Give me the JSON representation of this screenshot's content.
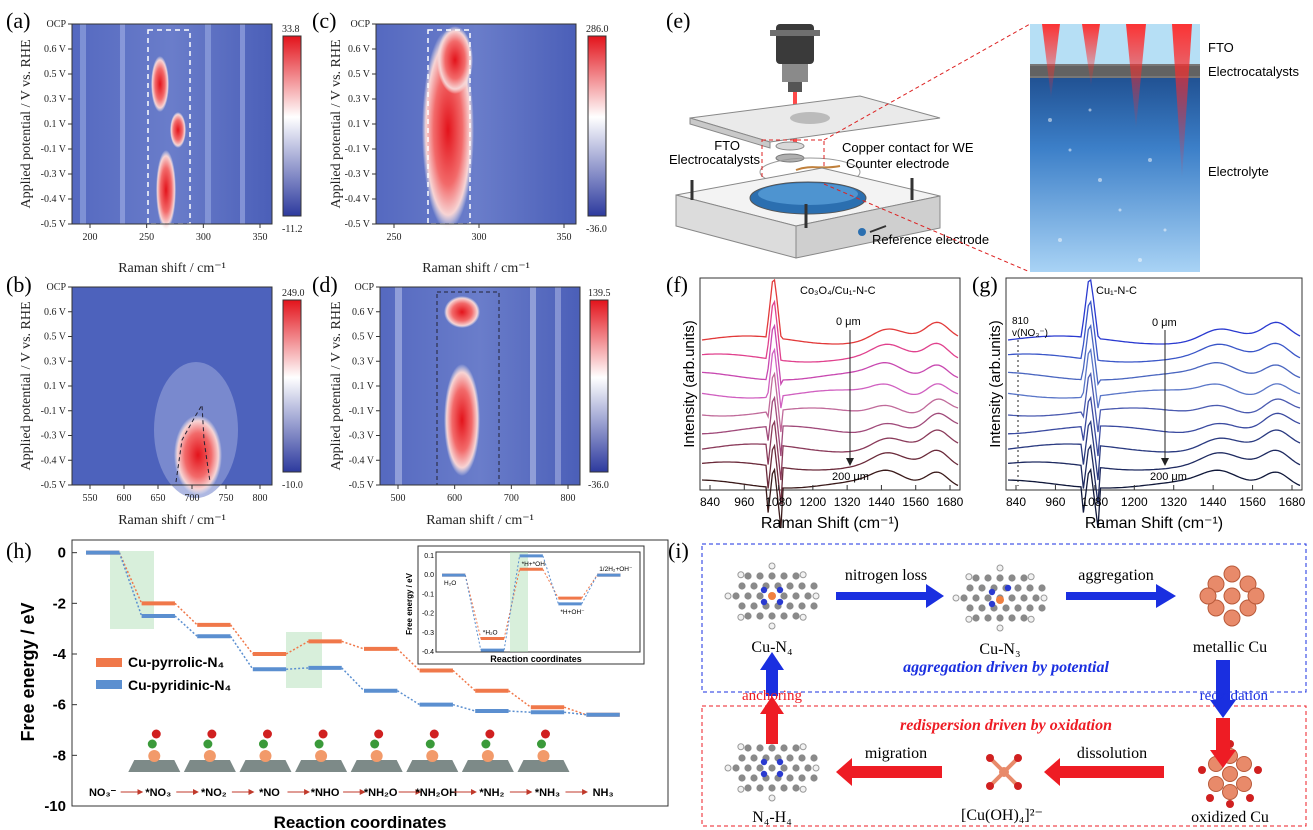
{
  "panels": {
    "a": {
      "label": "(a)",
      "ylabel": "Applied potential / V vs. RHE",
      "xlabel": "Raman shift / cm⁻¹",
      "yticks": [
        "OCP",
        "0.6 V",
        "0.5 V",
        "0.3 V",
        "0.1 V",
        "-0.1 V",
        "-0.3 V",
        "-0.4 V",
        "-0.5 V"
      ],
      "xticks": [
        "200",
        "250",
        "300",
        "350"
      ],
      "cbar_max": "33.8",
      "cbar_min": "-11.2"
    },
    "b": {
      "label": "(b)",
      "ylabel": "Applied potential / V vs. RHE",
      "xlabel": "Raman shift / cm⁻¹",
      "yticks": [
        "OCP",
        "0.6 V",
        "0.5 V",
        "0.3 V",
        "0.1 V",
        "-0.1 V",
        "-0.3 V",
        "-0.4 V",
        "-0.5 V"
      ],
      "xticks": [
        "550",
        "600",
        "650",
        "700",
        "750",
        "800"
      ],
      "cbar_max": "249.0",
      "cbar_min": "-10.0"
    },
    "c": {
      "label": "(c)",
      "ylabel": "Applied potential / V vs. RHE",
      "xlabel": "Raman shift / cm⁻¹",
      "yticks": [
        "OCP",
        "0.6 V",
        "0.5 V",
        "0.3 V",
        "0.1 V",
        "-0.1 V",
        "-0.3 V",
        "-0.4 V",
        "-0.5 V"
      ],
      "xticks": [
        "250",
        "300",
        "350"
      ],
      "cbar_max": "286.0",
      "cbar_min": "-36.0"
    },
    "d": {
      "label": "(d)",
      "ylabel": "Applied potential / V vs. RHE",
      "xlabel": "Raman shift / cm⁻¹",
      "yticks": [
        "OCP",
        "0.6 V",
        "0.5 V",
        "0.3 V",
        "0.1 V",
        "-0.1 V",
        "-0.3 V",
        "-0.4 V",
        "-0.5 V"
      ],
      "xticks": [
        "500",
        "600",
        "700",
        "800"
      ],
      "cbar_max": "139.5",
      "cbar_min": "-36.0"
    },
    "e": {
      "label": "(e)",
      "labels": {
        "fto_left": "FTO",
        "electrocatalysts_left": "Electrocatalysts",
        "copper": "Copper contact for WE",
        "counter": "Counter electrode",
        "reference": "Reference electrode",
        "fto_right": "FTO",
        "electrocatalysts_right": "Electrocatalysts",
        "electrolyte": "Electrolyte"
      }
    },
    "f": {
      "label": "(f)",
      "title": "Co₃O₄/Cu₁-N-C",
      "top": "0 μm",
      "bottom": "200 μm",
      "ylabel": "Intensity (arb.units)",
      "xlabel": "Raman Shift (cm⁻¹)",
      "xticks": [
        "840",
        "960",
        "1080",
        "1200",
        "1320",
        "1440",
        "1560",
        "1680"
      ]
    },
    "g": {
      "label": "(g)",
      "title": "Cu₁-N-C",
      "top": "0 μm",
      "bottom": "200 μm",
      "peak_note_1": "810",
      "peak_note_2": "v(NO₃⁻)",
      "ylabel": "Intensity (arb.units)",
      "xlabel": "Raman Shift (cm⁻¹)",
      "xticks": [
        "840",
        "960",
        "1080",
        "1200",
        "1320",
        "1440",
        "1560",
        "1680"
      ]
    },
    "h": {
      "label": "(h)",
      "ylabel": "Free energy / eV",
      "xlabel": "Reaction coordinates",
      "yticks": [
        "0",
        "-2",
        "-4",
        "-6",
        "-8",
        "-10"
      ],
      "legend": [
        "Cu-pyrrolic-N₄",
        "Cu-pyridinic-N₄"
      ],
      "steps": [
        "NO₃⁻",
        "*NO₃",
        "*NO₂",
        "*NO",
        "*NHO",
        "*NH₂O",
        "*NH₂OH",
        "*NH₂",
        "*NH₃",
        "NH₃"
      ],
      "inset": {
        "ylabel": "Free energy / eV",
        "xlabel": "Reaction coordinates",
        "yticks": [
          "0.1",
          "0.0",
          "-0.1",
          "-0.2",
          "-0.3",
          "-0.4"
        ],
        "states": [
          "H₂O",
          "*H₂O",
          "*H+*OH",
          "*H+OH⁻",
          "1/2H₂+OH⁻"
        ]
      }
    },
    "i": {
      "label": "(i)",
      "cu_n4": "Cu-N₄",
      "cu_n3": "Cu-N₃",
      "metallic": "metallic Cu",
      "n4h4": "N₄-H₄",
      "cuoh": "[Cu(OH)₄]²⁻",
      "oxidized": "oxidized Cu",
      "nitrogen_loss": "nitrogen loss",
      "aggregation": "aggregation",
      "reoxidation": "reoxidation",
      "anchoring": "anchoring",
      "dissolution": "dissolution",
      "migration": "migration",
      "top_caption": "aggregation driven by potential",
      "bottom_caption": "redispersion driven by oxidation"
    }
  },
  "colors": {
    "pyrrolic": "#f0784a",
    "pyridinic": "#5b8fd0",
    "arrow_blue": "#1a2fe0",
    "arrow_red": "#ee1c24",
    "heat_low": "#2d3a9e",
    "heat_high": "#e3131b"
  },
  "chart_data": [
    {
      "type": "line",
      "title": "",
      "xlabel": "Reaction coordinates",
      "ylabel": "Free energy / eV",
      "categories": [
        "NO₃⁻",
        "*NO₃",
        "*NO₂",
        "*NO",
        "*NHO",
        "*NH₂O",
        "*NH₂OH",
        "*NH₂",
        "*NH₃",
        "NH₃"
      ],
      "ylim": [
        -10,
        0.5
      ],
      "series": [
        {
          "name": "Cu-pyrrolic-N₄",
          "values": [
            0,
            -2.0,
            -2.85,
            -4.0,
            -3.5,
            -3.8,
            -4.65,
            -5.45,
            -6.1,
            -6.4
          ]
        },
        {
          "name": "Cu-pyridinic-N₄",
          "values": [
            0,
            -2.5,
            -3.3,
            -4.6,
            -4.55,
            -5.45,
            -6.0,
            -6.25,
            -6.3,
            -6.4
          ]
        }
      ]
    },
    {
      "type": "line",
      "title": "",
      "xlabel": "Reaction coordinates",
      "ylabel": "Free energy / eV",
      "categories": [
        "H₂O",
        "*H₂O",
        "*H+*OH",
        "*H+OH⁻",
        "1/2H₂+OH⁻"
      ],
      "ylim": [
        -0.4,
        0.12
      ],
      "series": [
        {
          "name": "",
          "values": [
            0,
            -0.33,
            0.03,
            -0.12,
            0
          ]
        },
        {
          "name": "",
          "values": [
            0,
            -0.39,
            0.1,
            -0.15,
            0
          ]
        }
      ]
    }
  ]
}
